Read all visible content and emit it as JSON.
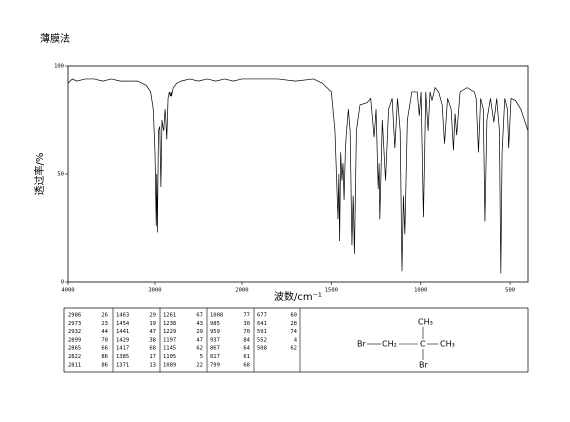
{
  "chart_data": {
    "type": "line",
    "title": "薄膜法",
    "x_label": "波数/cm⁻¹",
    "y_label": "透过率/%",
    "color": "#000000",
    "xlim": [
      4000,
      400
    ],
    "ylim": [
      0,
      100
    ],
    "xticks": [
      4000,
      3000,
      2000,
      1500,
      1000,
      500
    ],
    "yticks": [
      0,
      50,
      100
    ],
    "x": [
      4000,
      3950,
      3900,
      3800,
      3700,
      3600,
      3500,
      3400,
      3300,
      3200,
      3100,
      3050,
      3020,
      3000,
      2986,
      2980,
      2973,
      2960,
      2945,
      2932,
      2920,
      2910,
      2899,
      2885,
      2875,
      2865,
      2850,
      2835,
      2822,
      2815,
      2811,
      2790,
      2750,
      2700,
      2600,
      2500,
      2400,
      2300,
      2200,
      2100,
      2000,
      1900,
      1800,
      1700,
      1600,
      1550,
      1500,
      1480,
      1463,
      1458,
      1454,
      1448,
      1441,
      1435,
      1429,
      1422,
      1417,
      1405,
      1395,
      1385,
      1378,
      1371,
      1360,
      1340,
      1300,
      1280,
      1261,
      1250,
      1238,
      1233,
      1229,
      1215,
      1197,
      1180,
      1160,
      1145,
      1130,
      1115,
      1105,
      1097,
      1089,
      1075,
      1050,
      1020,
      1008,
      998,
      985,
      972,
      959,
      948,
      937,
      920,
      900,
      880,
      867,
      850,
      830,
      817,
      808,
      799,
      780,
      740,
      700,
      690,
      677,
      665,
      650,
      641,
      630,
      610,
      591,
      575,
      560,
      552,
      545,
      530,
      515,
      508,
      495,
      470,
      440,
      420,
      400
    ],
    "values": [
      92,
      94,
      93,
      94,
      94,
      93,
      94,
      93,
      93,
      93,
      91,
      88,
      80,
      60,
      26,
      50,
      23,
      70,
      72,
      44,
      75,
      72,
      70,
      80,
      75,
      66,
      85,
      88,
      86,
      88,
      86,
      90,
      92,
      93,
      94,
      93,
      94,
      93,
      94,
      93,
      94,
      94,
      94,
      93,
      94,
      92,
      88,
      70,
      29,
      50,
      19,
      60,
      47,
      55,
      38,
      60,
      68,
      80,
      70,
      17,
      40,
      13,
      70,
      82,
      83,
      85,
      67,
      80,
      43,
      55,
      29,
      75,
      47,
      80,
      85,
      62,
      85,
      70,
      5,
      40,
      22,
      75,
      88,
      88,
      77,
      88,
      30,
      88,
      70,
      88,
      84,
      90,
      88,
      82,
      64,
      85,
      80,
      61,
      78,
      68,
      88,
      90,
      88,
      85,
      60,
      85,
      80,
      28,
      75,
      85,
      74,
      85,
      70,
      4,
      60,
      85,
      80,
      62,
      85,
      84,
      80,
      75,
      70
    ]
  },
  "peak_table": [
    [
      2986,
      26
    ],
    [
      2973,
      23
    ],
    [
      2932,
      44
    ],
    [
      2899,
      70
    ],
    [
      2865,
      66
    ],
    [
      2822,
      86
    ],
    [
      2811,
      86
    ],
    [
      1463,
      29
    ],
    [
      1454,
      19
    ],
    [
      1441,
      47
    ],
    [
      1429,
      38
    ],
    [
      1417,
      68
    ],
    [
      1385,
      17
    ],
    [
      1371,
      13
    ],
    [
      1261,
      67
    ],
    [
      1238,
      43
    ],
    [
      1229,
      29
    ],
    [
      1197,
      47
    ],
    [
      1145,
      62
    ],
    [
      1105,
      5
    ],
    [
      1089,
      22
    ],
    [
      1008,
      77
    ],
    [
      985,
      30
    ],
    [
      959,
      70
    ],
    [
      937,
      84
    ],
    [
      867,
      64
    ],
    [
      817,
      61
    ],
    [
      799,
      68
    ],
    [
      677,
      60
    ],
    [
      641,
      28
    ],
    [
      591,
      74
    ],
    [
      552,
      4
    ],
    [
      508,
      62
    ]
  ],
  "structure": {
    "atoms": [
      "CH₃",
      "Br",
      "CH₂",
      "C",
      "CH₃",
      "Br"
    ]
  }
}
